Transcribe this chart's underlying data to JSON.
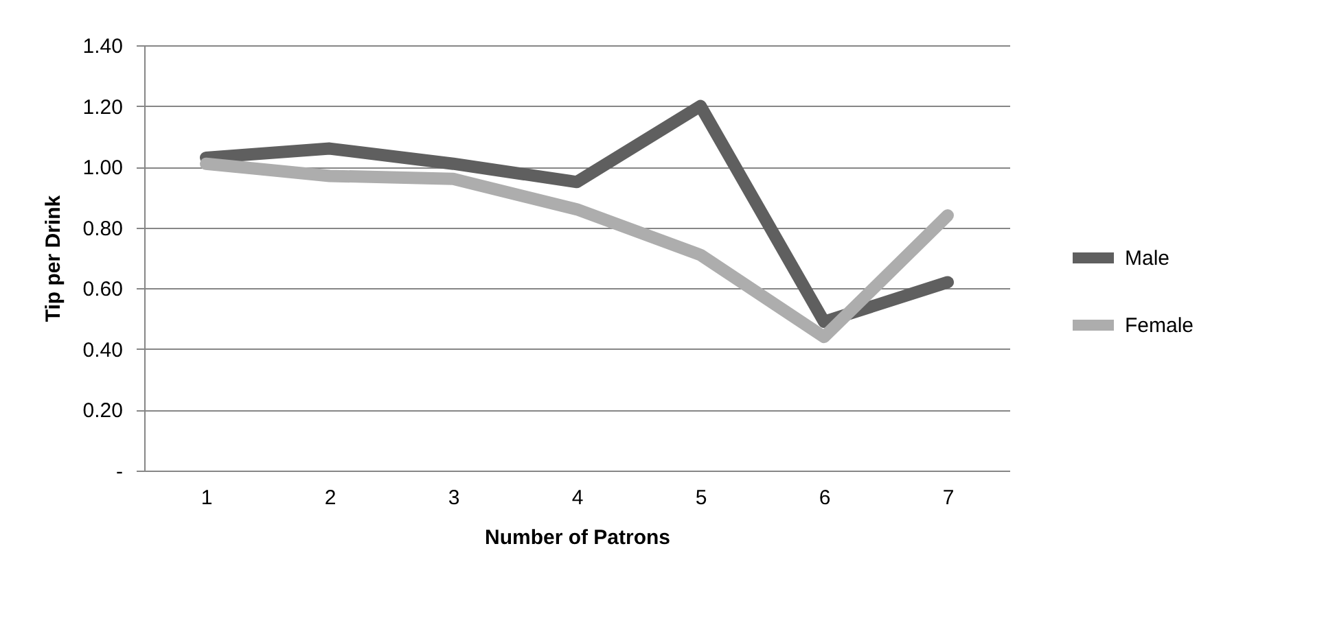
{
  "chart_data": {
    "type": "line",
    "xlabel": "Number of Patrons",
    "ylabel": "Tip per Drink",
    "categories": [
      "1",
      "2",
      "3",
      "4",
      "5",
      "6",
      "7"
    ],
    "series": [
      {
        "name": "Male",
        "color": "#5f5f5f",
        "values": [
          1.03,
          1.06,
          1.01,
          0.95,
          1.2,
          0.49,
          0.62
        ]
      },
      {
        "name": "Female",
        "color": "#adadad",
        "values": [
          1.01,
          0.97,
          0.96,
          0.86,
          0.71,
          0.44,
          0.84
        ]
      }
    ],
    "ylim": [
      0,
      1.4
    ],
    "yticks": [
      {
        "value": 0,
        "label": "-"
      },
      {
        "value": 0.2,
        "label": "0.20"
      },
      {
        "value": 0.4,
        "label": "0.40"
      },
      {
        "value": 0.6,
        "label": "0.60"
      },
      {
        "value": 0.8,
        "label": "0.80"
      },
      {
        "value": 1,
        "label": "1.00"
      },
      {
        "value": 1.2,
        "label": "1.20"
      },
      {
        "value": 1.4,
        "label": "1.40"
      }
    ],
    "grid": "y",
    "legend": "right",
    "marker": "none",
    "line_style": "solid"
  }
}
